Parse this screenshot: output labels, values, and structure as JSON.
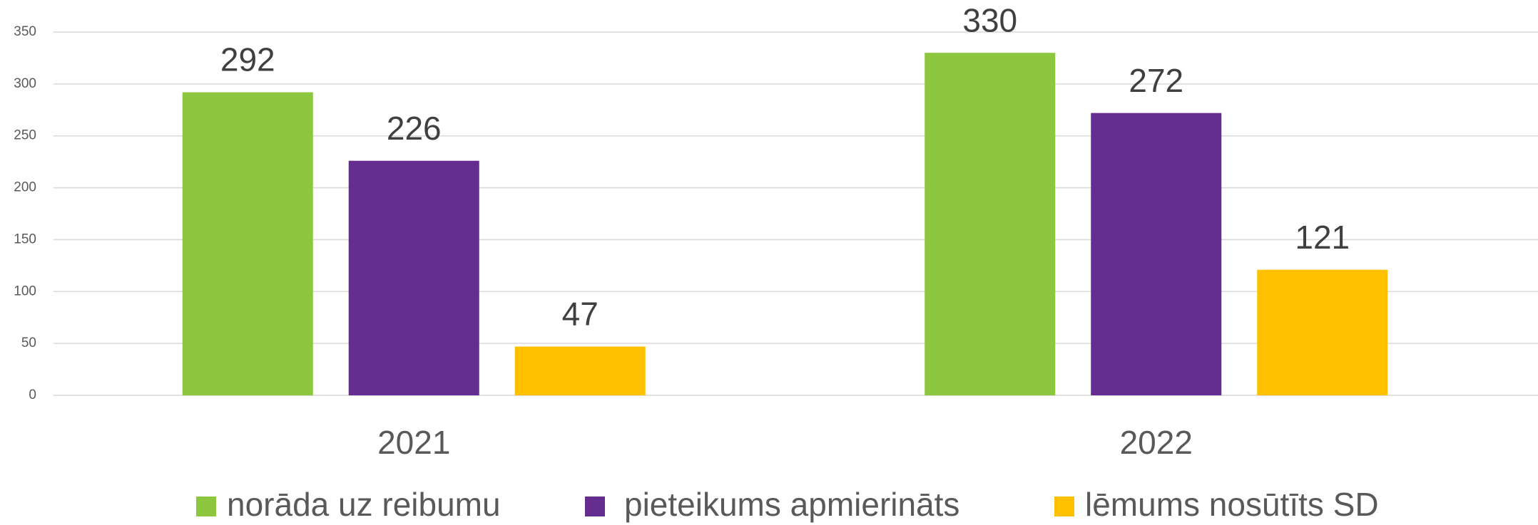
{
  "chart_data": {
    "type": "bar",
    "categories": [
      "2021",
      "2022"
    ],
    "series": [
      {
        "name": "norāda uz reibumu",
        "color": "#8dc63f",
        "values": [
          292,
          330
        ]
      },
      {
        "name": "pieteikums apmierināts",
        "color": "#652d90",
        "values": [
          226,
          272
        ]
      },
      {
        "name": "lēmums nosūtīts SD",
        "color": "#ffc000",
        "values": [
          47,
          121
        ]
      }
    ],
    "ylim": [
      0,
      350
    ],
    "yticks": [
      0,
      50,
      100,
      150,
      200,
      250,
      300,
      350
    ],
    "grid": true,
    "legend": "bottom"
  }
}
